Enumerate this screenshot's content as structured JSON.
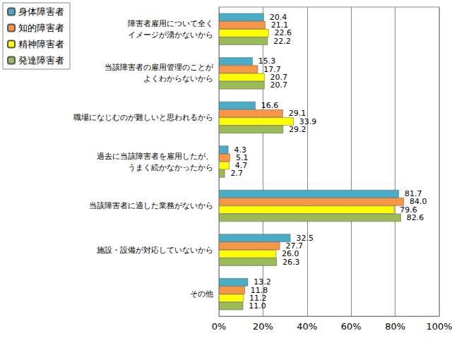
{
  "chart_data": {
    "type": "bar",
    "orientation": "horizontal",
    "categories": [
      "障害者雇用について全く\nイメージが湧かないから",
      "当該障害者の雇用管理のことが\nよくわからないから",
      "職場になじむのが難しいと思われるから",
      "過去に当該障害者を雇用したが、\nうまく続かなかったから",
      "当該障害者に適した業務がないから",
      "施設・設備が対応していないから",
      "その他"
    ],
    "series": [
      {
        "name": "身体障害者",
        "color": "#4bacc6",
        "values": [
          20.4,
          15.3,
          16.6,
          4.3,
          81.7,
          32.5,
          13.2
        ],
        "value_labels": [
          "20.4",
          "15.3",
          "16.6",
          "4.3",
          "81.7",
          "32.5",
          "13.2"
        ]
      },
      {
        "name": "知的障害者",
        "color": "#f79646",
        "values": [
          21.1,
          17.7,
          29.1,
          5.1,
          84.0,
          27.7,
          11.8
        ],
        "value_labels": [
          "21.1",
          "17.7",
          "29.1",
          "5.1",
          "84.0",
          "27.7",
          "11.8"
        ]
      },
      {
        "name": "精神障害者",
        "color": "#ffff00",
        "values": [
          22.6,
          20.7,
          33.9,
          4.7,
          79.6,
          26.0,
          11.2
        ],
        "value_labels": [
          "22.6",
          "20.7",
          "33.9",
          "4.7",
          "79.6",
          "26.0",
          "11.2"
        ]
      },
      {
        "name": "発達障害者",
        "color": "#9bbb59",
        "values": [
          22.2,
          20.7,
          29.2,
          2.7,
          82.6,
          26.3,
          11.0
        ],
        "value_labels": [
          "22.2",
          "20.7",
          "29.2",
          "2.7",
          "82.6",
          "26.3",
          "11.0"
        ]
      }
    ],
    "xlim": [
      0,
      100
    ],
    "xticks": [
      {
        "value": 0,
        "label": "0%"
      },
      {
        "value": 20,
        "label": "20%"
      },
      {
        "value": 40,
        "label": "40%"
      },
      {
        "value": 60,
        "label": "60%"
      },
      {
        "value": 80,
        "label": "80%"
      },
      {
        "value": 100,
        "label": "100%"
      }
    ],
    "grid": true,
    "legend": "top-left",
    "data_labels": true
  }
}
